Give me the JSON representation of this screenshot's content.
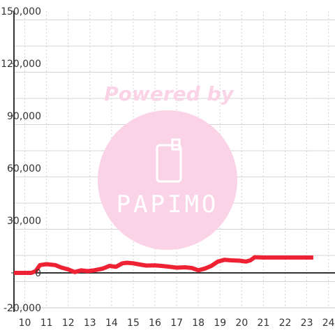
{
  "colors": {
    "line": "#ee2233",
    "axis": "#333333",
    "grid_major": "#c8c8c8",
    "grid_minor": "#d4d4d4",
    "watermark": "#fbd3e6",
    "watermark_circle": "#fbd3e6"
  },
  "watermark": {
    "powered_by": "Powered by",
    "logo": "PAPIMO",
    "icon": "phone-icon"
  },
  "chart_data": {
    "type": "line",
    "title": "",
    "xlabel": "",
    "ylabel": "",
    "xlim": [
      9.5,
      24.3
    ],
    "ylim": [
      -20000,
      150000
    ],
    "x_ticks": [
      10,
      11,
      12,
      13,
      14,
      15,
      16,
      17,
      18,
      19,
      20,
      21,
      22,
      23,
      24
    ],
    "x_tick_labels": [
      "10",
      "11",
      "12",
      "13",
      "14",
      "15",
      "16",
      "17",
      "18",
      "19",
      "20",
      "21",
      "22",
      "23",
      "24"
    ],
    "y_ticks": [
      -20000,
      0,
      30000,
      60000,
      90000,
      120000,
      150000
    ],
    "y_tick_labels": [
      "-20,000",
      "0",
      "30,000",
      "60,000",
      "90,000",
      "120,000",
      "150,000"
    ],
    "grid": true,
    "legend": "none",
    "series": [
      {
        "x": [
          9.5,
          10.0,
          10.3,
          10.5,
          10.7,
          11.0,
          11.4,
          11.7,
          12.0,
          12.3,
          12.6,
          12.9,
          13.2,
          13.6,
          13.9,
          14.2,
          14.5,
          14.7,
          15.0,
          15.3,
          15.6,
          16.0,
          16.3,
          16.7,
          17.0,
          17.4,
          17.7,
          18.0,
          18.3,
          18.6,
          18.9,
          19.2,
          19.5,
          19.9,
          20.2,
          20.4,
          20.6,
          21.0,
          21.5,
          22.0,
          22.5,
          23.0,
          23.3
        ],
        "y": [
          0,
          0,
          0,
          1000,
          4500,
          5000,
          4500,
          3000,
          2000,
          500,
          1500,
          1000,
          1500,
          2500,
          4000,
          3500,
          5500,
          5800,
          5500,
          4800,
          4200,
          4300,
          4000,
          3500,
          3000,
          3200,
          2800,
          1500,
          2500,
          4000,
          6500,
          7500,
          7200,
          7000,
          6500,
          7200,
          9000,
          8800,
          8800,
          8800,
          8800,
          8800,
          8800
        ]
      }
    ]
  }
}
